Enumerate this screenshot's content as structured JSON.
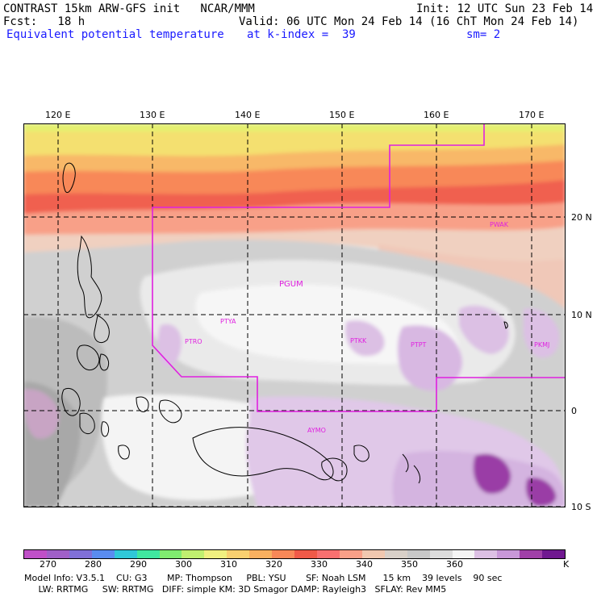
{
  "header": {
    "line1_left": "CONTRAST 15km ARW-GFS init   NCAR/MMM",
    "line1_right": "Init: 12 UTC Sun 23 Feb 14",
    "line2_left": "Fcst:   18 h",
    "line2_right": "Valid: 06 UTC Mon 24 Feb 14 (16 ChT Mon 24 Feb 14)",
    "line3_left": "Equivalent potential temperature",
    "line3_mid": "at k-index =  39",
    "line3_right": "sm= 2"
  },
  "map": {
    "lon_labels": [
      "120 E",
      "130 E",
      "140 E",
      "150 E",
      "160 E",
      "170 E"
    ],
    "lat_labels": [
      "20 N",
      "10 N",
      "0",
      "10 S"
    ],
    "stations": [
      "PWAK",
      "PGUM",
      "PTYA",
      "PTRO",
      "PTKK",
      "PTPT",
      "PKMJ",
      "AYMO"
    ]
  },
  "colorbar": {
    "colors": [
      "#c050c8",
      "#a060c8",
      "#8070d8",
      "#5a8cf0",
      "#30c8d8",
      "#40e8a0",
      "#80ec70",
      "#c0f070",
      "#f0f080",
      "#f8d070",
      "#f8b060",
      "#f88858",
      "#f05a48",
      "#f87070",
      "#f8a088",
      "#f0c8b0",
      "#d8d0c8",
      "#c8c8c8",
      "#dcdcdc",
      "#f4f4f4",
      "#dcc0e4",
      "#c898d8",
      "#a040a8",
      "#701890"
    ],
    "labels": [
      "270",
      "280",
      "290",
      "300",
      "310",
      "320",
      "330",
      "340",
      "350",
      "360",
      "K"
    ]
  },
  "model_info": {
    "line1": "Model Info: V3.5.1    CU: G3       MP: Thompson     PBL: YSU       SF: Noah LSM      15 km    39 levels    90 sec",
    "line2": "     LW: RRTMG     SW: RRTMG   DIFF: simple KM: 3D Smagor DAMP: Rayleigh3   SFLAY: Rev MM5"
  }
}
